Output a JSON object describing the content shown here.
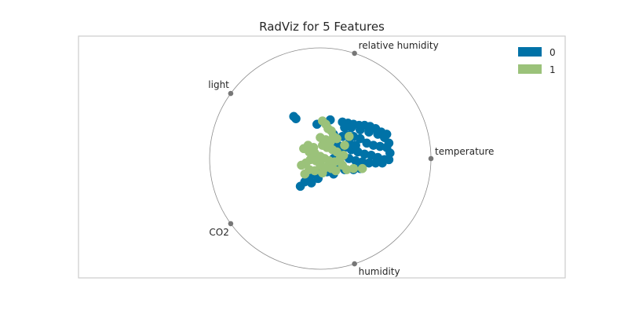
{
  "chart_data": {
    "type": "scatter",
    "title": "RadViz for 5 Features",
    "features": [
      "relative humidity",
      "temperature",
      "humidity",
      "CO2",
      "light"
    ],
    "anchor_angles_deg": [
      72,
      0,
      -72,
      -144,
      144
    ],
    "xlim": [
      -1.5,
      1.5
    ],
    "ylim": [
      -1.0,
      1.0
    ],
    "legend_position": "top-right",
    "grid": false,
    "series": [
      {
        "name": "0",
        "color": "#0072a7",
        "points": [
          [
            -0.24,
            0.38
          ],
          [
            -0.22,
            0.36
          ],
          [
            -0.03,
            0.31
          ],
          [
            0.05,
            0.32
          ],
          [
            0.09,
            0.35
          ],
          [
            0.2,
            0.33
          ],
          [
            0.25,
            0.32
          ],
          [
            0.3,
            0.31
          ],
          [
            0.35,
            0.3
          ],
          [
            0.4,
            0.3
          ],
          [
            0.45,
            0.29
          ],
          [
            0.5,
            0.27
          ],
          [
            0.55,
            0.24
          ],
          [
            0.6,
            0.22
          ],
          [
            0.22,
            0.28
          ],
          [
            0.28,
            0.28
          ],
          [
            0.36,
            0.26
          ],
          [
            0.44,
            0.24
          ],
          [
            0.52,
            0.22
          ],
          [
            0.58,
            0.19
          ],
          [
            0.2,
            0.2
          ],
          [
            0.24,
            0.21
          ],
          [
            0.3,
            0.2
          ],
          [
            0.36,
            0.18
          ],
          [
            0.42,
            0.14
          ],
          [
            0.48,
            0.12
          ],
          [
            0.54,
            0.11
          ],
          [
            0.6,
            0.1
          ],
          [
            0.62,
            0.14
          ],
          [
            0.63,
            0.05
          ],
          [
            0.16,
            0.12
          ],
          [
            0.22,
            0.1
          ],
          [
            0.28,
            0.08
          ],
          [
            0.34,
            0.06
          ],
          [
            0.4,
            0.04
          ],
          [
            0.46,
            0.03
          ],
          [
            0.52,
            0.01
          ],
          [
            0.58,
            -0.01
          ],
          [
            0.62,
            -0.01
          ],
          [
            0.2,
            0.04
          ],
          [
            0.26,
            0.0
          ],
          [
            0.32,
            -0.02
          ],
          [
            0.38,
            -0.03
          ],
          [
            0.44,
            -0.04
          ],
          [
            0.5,
            -0.04
          ],
          [
            0.56,
            -0.04
          ],
          [
            0.1,
            -0.06
          ],
          [
            0.16,
            -0.08
          ],
          [
            0.22,
            -0.1
          ],
          [
            0.3,
            -0.1
          ],
          [
            0.36,
            -0.09
          ],
          [
            0.0,
            -0.12
          ],
          [
            -0.06,
            -0.14
          ],
          [
            -0.1,
            -0.17
          ],
          [
            -0.14,
            -0.21
          ],
          [
            -0.18,
            -0.25
          ],
          [
            0.06,
            -0.12
          ],
          [
            0.12,
            -0.14
          ],
          [
            -0.02,
            -0.18
          ],
          [
            -0.08,
            -0.22
          ],
          [
            0.14,
            0.16
          ],
          [
            0.18,
            0.06
          ],
          [
            0.12,
            0.0
          ],
          [
            0.18,
            -0.04
          ],
          [
            0.26,
            0.14
          ],
          [
            0.32,
            0.12
          ],
          [
            0.12,
            0.22
          ]
        ]
      },
      {
        "name": "1",
        "color": "#9bc27a",
        "points": [
          [
            0.02,
            0.34
          ],
          [
            0.05,
            0.31
          ],
          [
            0.07,
            0.27
          ],
          [
            0.1,
            0.25
          ],
          [
            0.12,
            0.2
          ],
          [
            0.0,
            0.19
          ],
          [
            0.05,
            0.17
          ],
          [
            0.09,
            0.15
          ],
          [
            0.02,
            0.12
          ],
          [
            0.06,
            0.1
          ],
          [
            0.11,
            0.08
          ],
          [
            0.15,
            0.06
          ],
          [
            -0.06,
            0.1
          ],
          [
            -0.11,
            0.12
          ],
          [
            -0.15,
            0.09
          ],
          [
            -0.1,
            0.06
          ],
          [
            -0.05,
            0.05
          ],
          [
            0.0,
            0.02
          ],
          [
            0.04,
            0.0
          ],
          [
            0.08,
            -0.02
          ],
          [
            0.13,
            -0.03
          ],
          [
            0.18,
            0.0
          ],
          [
            0.21,
            0.03
          ],
          [
            0.2,
            -0.06
          ],
          [
            -0.04,
            -0.02
          ],
          [
            -0.09,
            -0.01
          ],
          [
            -0.13,
            -0.04
          ],
          [
            -0.17,
            -0.06
          ],
          [
            0.0,
            -0.06
          ],
          [
            0.05,
            -0.08
          ],
          [
            0.1,
            -0.09
          ],
          [
            0.14,
            -0.11
          ],
          [
            -0.1,
            -0.1
          ],
          [
            -0.05,
            -0.11
          ],
          [
            0.02,
            -0.13
          ],
          [
            -0.14,
            -0.14
          ],
          [
            0.24,
            -0.1
          ],
          [
            0.3,
            -0.09
          ],
          [
            0.38,
            -0.09
          ],
          [
            0.22,
            0.12
          ],
          [
            0.26,
            0.2
          ],
          [
            0.15,
            0.18
          ]
        ]
      }
    ]
  }
}
